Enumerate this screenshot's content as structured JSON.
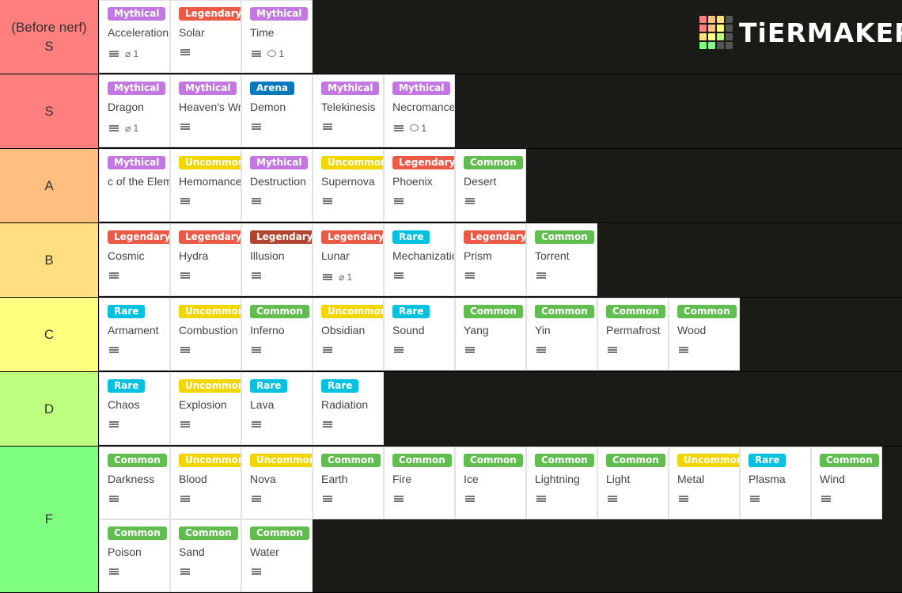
{
  "logo": {
    "text": "TiERMAKER"
  },
  "tiers": [
    {
      "label": "(Before nerf)\nS",
      "color": "#ff7f7f",
      "height": 93,
      "items": [
        {
          "badge": "Mythical",
          "name": "Acceleration",
          "desc": true,
          "attach": "1"
        },
        {
          "badge": "Legendary",
          "name": "Solar",
          "desc": true
        },
        {
          "badge": "Mythical",
          "name": "Time",
          "desc": true,
          "comments": "1"
        }
      ]
    },
    {
      "label": "S",
      "color": "#ff7f7f",
      "height": 93,
      "items": [
        {
          "badge": "Mythical",
          "name": "Dragon",
          "desc": true,
          "attach": "1"
        },
        {
          "badge": "Mythical",
          "name": "Heaven's Wrat",
          "desc": true
        },
        {
          "badge": "Arena",
          "name": "Demon",
          "desc": true
        },
        {
          "badge": "Mythical",
          "name": "Telekinesis",
          "desc": true
        },
        {
          "badge": "Mythical",
          "name": "Necromancer",
          "desc": true,
          "comments": "1"
        }
      ]
    },
    {
      "label": "A",
      "color": "#ffbf7f",
      "height": 93,
      "items": [
        {
          "badge": "Mythical",
          "name": "c of the Eleme",
          "desc": false
        },
        {
          "badge": "Uncommon",
          "name": "Hemomance",
          "desc": true
        },
        {
          "badge": "Mythical",
          "name": "Destruction",
          "desc": true
        },
        {
          "badge": "Uncommon",
          "name": "Supernova",
          "desc": true
        },
        {
          "badge": "Legendary",
          "name": "Phoenix",
          "desc": true
        },
        {
          "badge": "Common",
          "name": "Desert",
          "desc": true
        }
      ]
    },
    {
      "label": "B",
      "color": "#ffdf7f",
      "height": 93,
      "items": [
        {
          "badge": "Legendary",
          "name": "Cosmic",
          "desc": true
        },
        {
          "badge": "Legendary",
          "name": "Hydra",
          "desc": true
        },
        {
          "badge": "Legendary",
          "name": "Illusion",
          "desc": true,
          "dark": true
        },
        {
          "badge": "Legendary",
          "name": "Lunar",
          "desc": true,
          "attach": "1"
        },
        {
          "badge": "Rare",
          "name": "Mechanizatio",
          "desc": true
        },
        {
          "badge": "Legendary",
          "name": "Prism",
          "desc": true
        },
        {
          "badge": "Common",
          "name": "Torrent",
          "desc": true
        }
      ]
    },
    {
      "label": "C",
      "color": "#ffff7f",
      "height": 93,
      "items": [
        {
          "badge": "Rare",
          "name": "Armament",
          "desc": true
        },
        {
          "badge": "Uncommon",
          "name": "Combustion",
          "desc": true
        },
        {
          "badge": "Common",
          "name": "Inferno",
          "desc": true
        },
        {
          "badge": "Uncommon",
          "name": "Obsidian",
          "desc": true
        },
        {
          "badge": "Rare",
          "name": "Sound",
          "desc": true
        },
        {
          "badge": "Common",
          "name": "Yang",
          "desc": true
        },
        {
          "badge": "Common",
          "name": "Yin",
          "desc": true
        },
        {
          "badge": "Common",
          "name": "Permafrost",
          "desc": true
        },
        {
          "badge": "Common",
          "name": "Wood",
          "desc": true
        }
      ]
    },
    {
      "label": "D",
      "color": "#bfff7f",
      "height": 93,
      "items": [
        {
          "badge": "Rare",
          "name": "Chaos",
          "desc": true
        },
        {
          "badge": "Uncommon",
          "name": "Explosion",
          "desc": true
        },
        {
          "badge": "Rare",
          "name": "Lava",
          "desc": true
        },
        {
          "badge": "Rare",
          "name": "Radiation",
          "desc": true
        }
      ]
    },
    {
      "label": "F",
      "color": "#7fff7f",
      "height": 184,
      "items": [
        {
          "badge": "Common",
          "name": "Darkness",
          "desc": true
        },
        {
          "badge": "Uncommon",
          "name": "Blood",
          "desc": true
        },
        {
          "badge": "Uncommon",
          "name": "Nova",
          "desc": true
        },
        {
          "badge": "Common",
          "name": "Earth",
          "desc": true
        },
        {
          "badge": "Common",
          "name": "Fire",
          "desc": true
        },
        {
          "badge": "Common",
          "name": "Ice",
          "desc": true
        },
        {
          "badge": "Common",
          "name": "Lightning",
          "desc": true
        },
        {
          "badge": "Common",
          "name": "Light",
          "desc": true
        },
        {
          "badge": "Uncommon",
          "name": "Metal",
          "desc": true
        },
        {
          "badge": "Rare",
          "name": "Plasma",
          "desc": true
        },
        {
          "badge": "Common",
          "name": "Wind",
          "desc": true
        },
        {
          "badge": "Common",
          "name": "Poison",
          "desc": true
        },
        {
          "badge": "Common",
          "name": "Sand",
          "desc": true
        },
        {
          "badge": "Common",
          "name": "Water",
          "desc": true
        }
      ]
    }
  ]
}
